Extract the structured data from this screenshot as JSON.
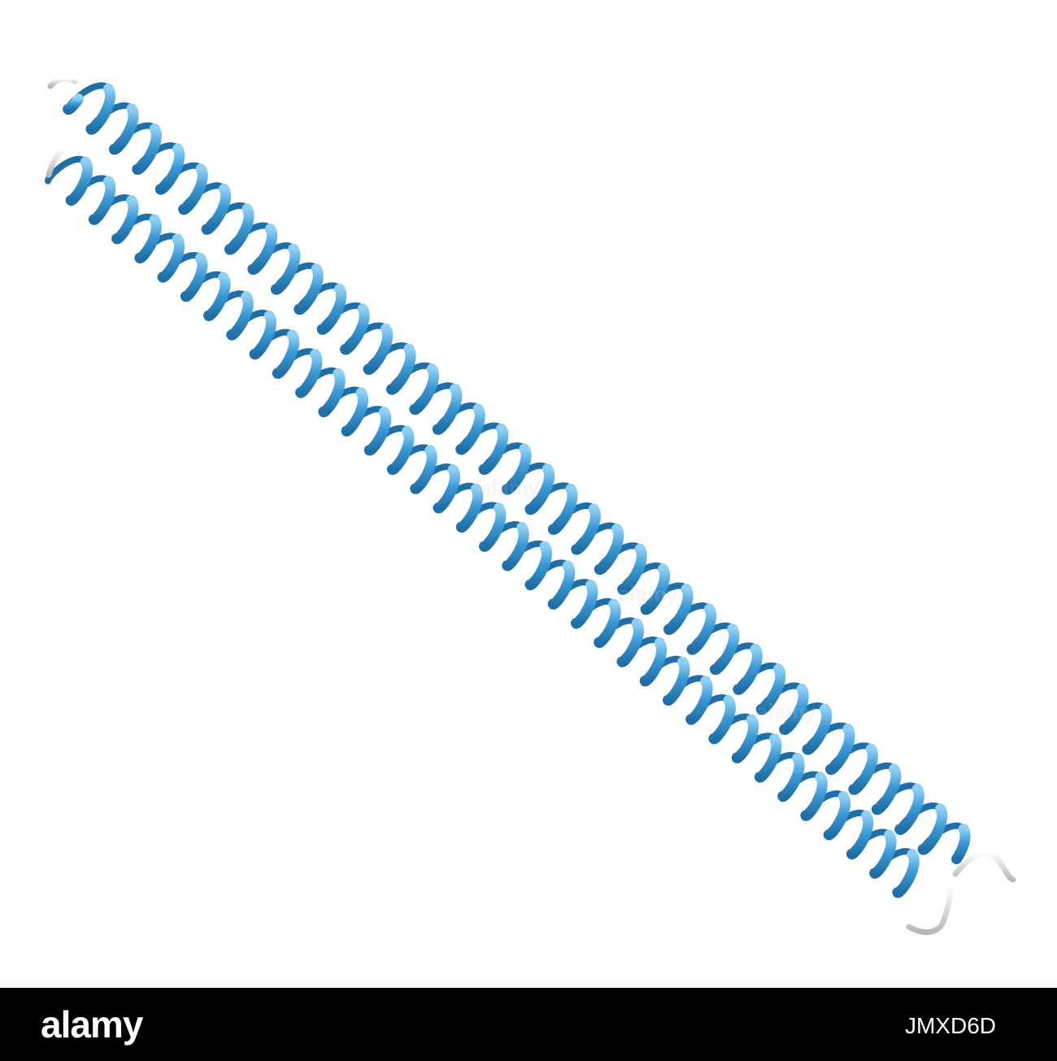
{
  "figure": {
    "subject": "coiled-coil-protein-ribbon",
    "colors": {
      "helix": "#3d9ad6",
      "helix_dark": "#1f6fa6",
      "helix_light": "#8fd0f4",
      "coil": "#e6e6e6",
      "background": "#ffffff"
    }
  },
  "watermark": {
    "text": "alamy"
  },
  "footer": {
    "logo_text": "alamy",
    "image_id": "JMXD6D",
    "background": "#000000",
    "text_color": "#ffffff"
  }
}
